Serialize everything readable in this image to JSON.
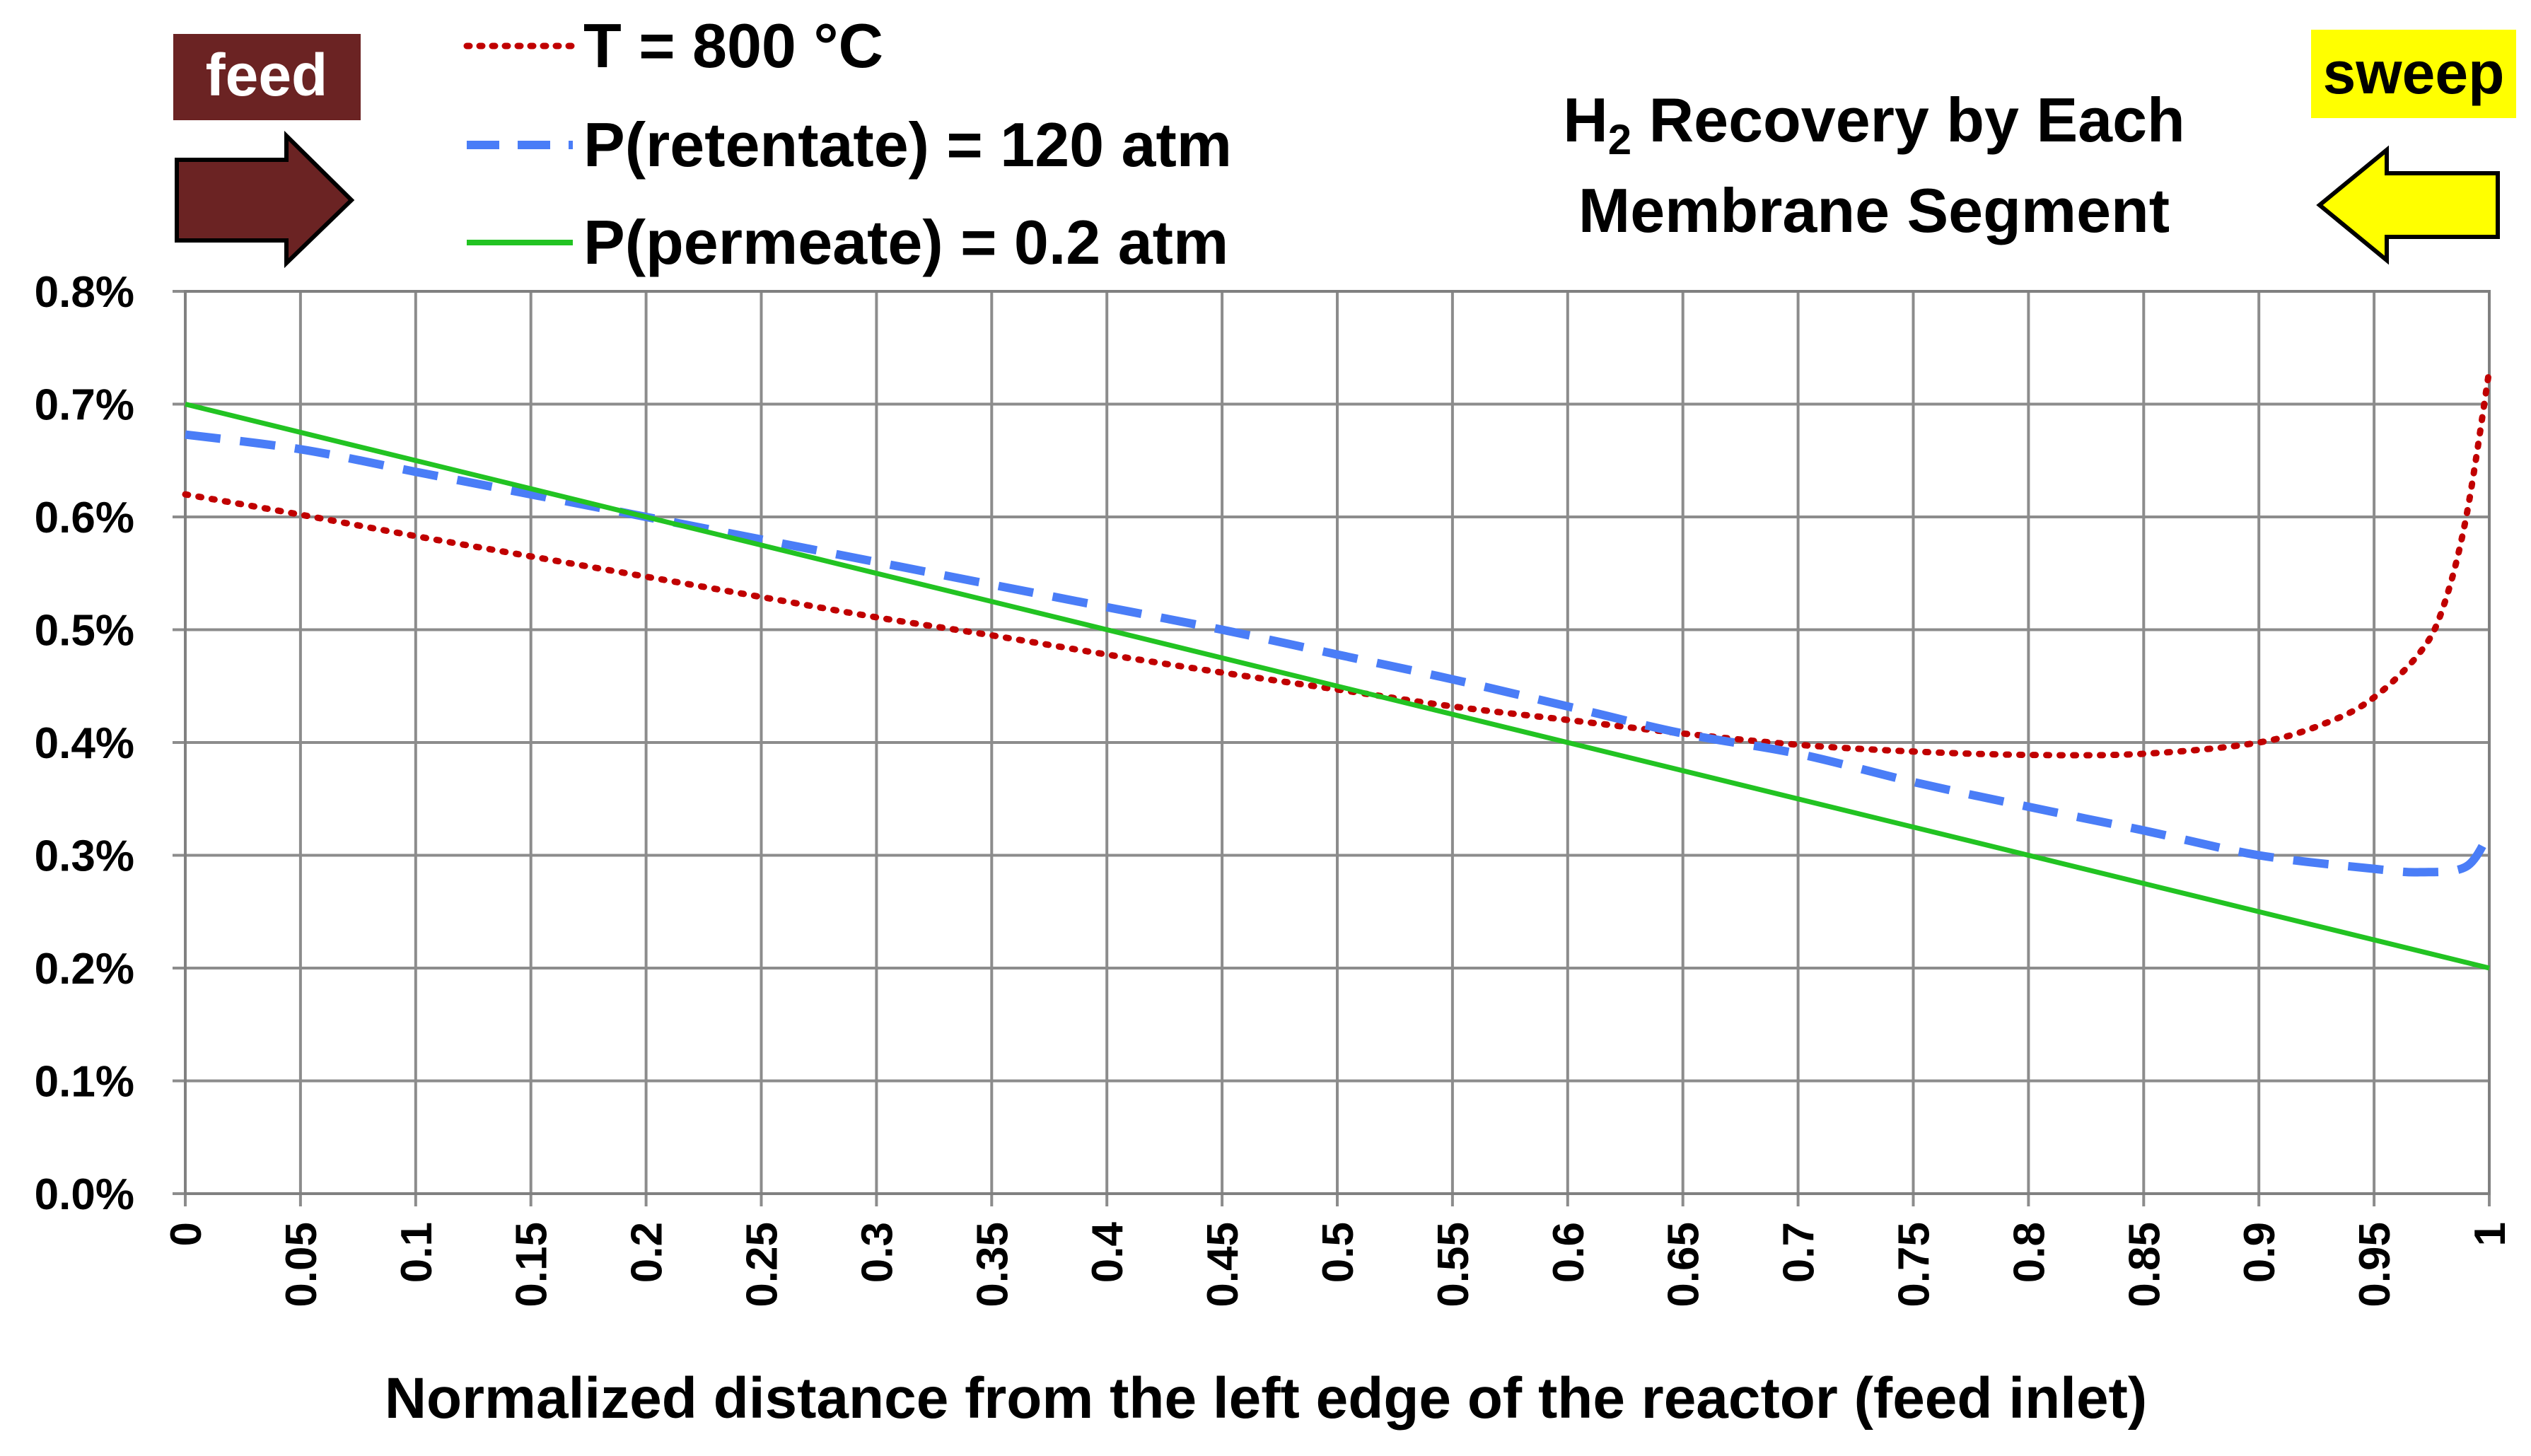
{
  "chart_data": {
    "type": "line",
    "title_main": "H",
    "title_sub": "2",
    "title_rest": " Recovery by Each",
    "title_line2": "Membrane Segment",
    "xlabel": "Normalized distance from the left edge of the reactor (feed inlet)",
    "ylabel": "",
    "xlim": [
      0,
      1
    ],
    "ylim": [
      0,
      0.8
    ],
    "x_ticks": [
      "0",
      "0.05",
      "0.1",
      "0.15",
      "0.2",
      "0.25",
      "0.3",
      "0.35",
      "0.4",
      "0.45",
      "0.5",
      "0.55",
      "0.6",
      "0.65",
      "0.7",
      "0.75",
      "0.8",
      "0.85",
      "0.9",
      "0.95",
      "1"
    ],
    "y_ticks": [
      "0.0%",
      "0.1%",
      "0.2%",
      "0.3%",
      "0.4%",
      "0.5%",
      "0.6%",
      "0.7%",
      "0.8%"
    ],
    "grid": true,
    "legend_position": "top-center",
    "series": [
      {
        "name": "T = 800 °C",
        "color": "#c00000",
        "style": "dotted",
        "x": [
          0,
          0.05,
          0.1,
          0.15,
          0.2,
          0.25,
          0.3,
          0.35,
          0.4,
          0.45,
          0.5,
          0.55,
          0.6,
          0.65,
          0.7,
          0.75,
          0.8,
          0.85,
          0.9,
          0.93,
          0.95,
          0.97,
          0.98,
          0.99,
          1.0
        ],
        "y": [
          0.62,
          0.602,
          0.583,
          0.565,
          0.547,
          0.529,
          0.511,
          0.495,
          0.478,
          0.462,
          0.447,
          0.432,
          0.42,
          0.408,
          0.398,
          0.392,
          0.389,
          0.39,
          0.4,
          0.418,
          0.44,
          0.48,
          0.52,
          0.6,
          0.73
        ]
      },
      {
        "name": "P(retentate) = 120 atm",
        "color": "#4a7df7",
        "style": "dashed",
        "x": [
          0,
          0.05,
          0.1,
          0.15,
          0.2,
          0.25,
          0.3,
          0.35,
          0.4,
          0.45,
          0.5,
          0.55,
          0.6,
          0.65,
          0.7,
          0.75,
          0.8,
          0.85,
          0.9,
          0.95,
          0.97,
          0.99,
          1.0
        ],
        "y": [
          0.673,
          0.66,
          0.64,
          0.62,
          0.6,
          0.58,
          0.56,
          0.54,
          0.52,
          0.5,
          0.478,
          0.456,
          0.432,
          0.408,
          0.39,
          0.365,
          0.343,
          0.322,
          0.3,
          0.288,
          0.285,
          0.29,
          0.32
        ]
      },
      {
        "name": "P(permeate) = 0.2 atm",
        "color": "#22c322",
        "style": "solid",
        "x": [
          0,
          1
        ],
        "y": [
          0.7,
          0.2
        ]
      }
    ],
    "annotations": {
      "feed_label": "feed",
      "feed_color": "#6b2323",
      "sweep_label": "sweep",
      "sweep_color": "#ffff00"
    }
  }
}
